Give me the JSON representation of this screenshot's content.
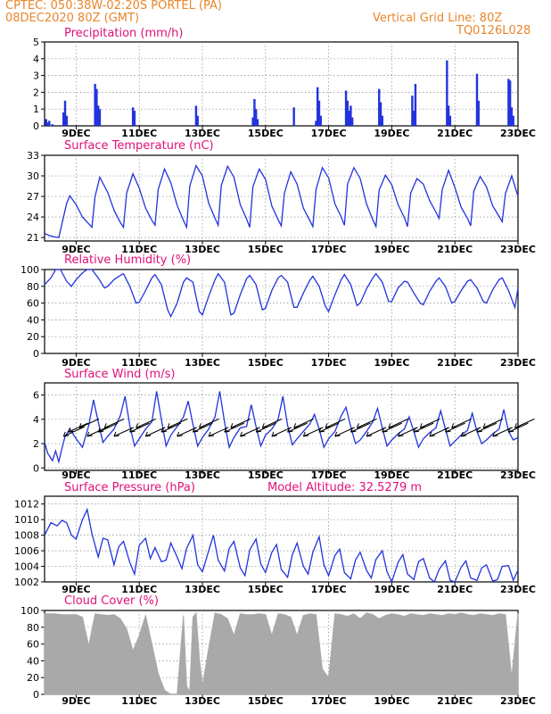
{
  "header": {
    "line1": "CPTEC:   050:38W-02:20S   PORTEL (PA)",
    "line2": "08DEC2020  80Z  (GMT)",
    "grid_note": "Vertical Grid Line: 80Z",
    "product_code": "TQ0126L028"
  },
  "colors": {
    "header": "#e8862a",
    "panel_title": "#e0107a",
    "series": "#2233dd",
    "cloud": "#a9a9a9",
    "grid": "#888888"
  },
  "x_axis": {
    "range_days": [
      8.0,
      23.0
    ],
    "tick_days": [
      9,
      11,
      13,
      15,
      17,
      19,
      21,
      23
    ],
    "tick_labels": [
      "9DEC",
      "11DEC",
      "13DEC",
      "15DEC",
      "17DEC",
      "19DEC",
      "21DEC",
      "23DEC"
    ]
  },
  "chart_data": [
    {
      "type": "bar",
      "title": "Precipitation (mm/h)",
      "ylim": [
        0,
        5
      ],
      "yticks": [
        0,
        1,
        2,
        3,
        4,
        5
      ],
      "grid": true,
      "x": [
        8.05,
        8.1,
        8.15,
        8.25,
        8.6,
        8.65,
        8.7,
        9.6,
        9.65,
        9.7,
        9.75,
        10.8,
        10.85,
        12.8,
        12.85,
        14.6,
        14.65,
        14.7,
        14.75,
        15.9,
        16.6,
        16.65,
        16.7,
        16.75,
        17.55,
        17.6,
        17.65,
        17.7,
        17.75,
        18.6,
        18.65,
        18.7,
        19.65,
        19.7,
        19.75,
        20.75,
        20.8,
        20.85,
        21.7,
        21.75,
        22.7,
        22.75,
        22.8,
        22.85
      ],
      "values": [
        0.4,
        0.2,
        0.3,
        0.1,
        0.8,
        1.5,
        0.6,
        2.5,
        2.2,
        1.2,
        1.0,
        1.1,
        0.9,
        1.2,
        0.6,
        0.5,
        1.6,
        1.0,
        0.4,
        1.1,
        0.3,
        2.3,
        1.5,
        0.6,
        2.1,
        1.5,
        0.9,
        1.2,
        0.5,
        2.2,
        1.4,
        0.6,
        1.8,
        0.9,
        2.5,
        3.9,
        1.2,
        0.6,
        3.1,
        1.5,
        2.8,
        2.7,
        1.1,
        0.6
      ]
    },
    {
      "type": "line",
      "title": "Surface Temperature (nC)",
      "ylim": [
        20.5,
        33
      ],
      "yticks": [
        21,
        24,
        27,
        30,
        33
      ],
      "grid": true,
      "x": [
        8.0,
        8.15,
        8.3,
        8.45,
        8.55,
        8.7,
        8.8,
        9.0,
        9.2,
        9.4,
        9.5,
        9.6,
        9.75,
        10.0,
        10.2,
        10.4,
        10.5,
        10.6,
        10.8,
        11.0,
        11.2,
        11.4,
        11.5,
        11.6,
        11.8,
        12.0,
        12.2,
        12.4,
        12.5,
        12.6,
        12.8,
        13.0,
        13.2,
        13.4,
        13.5,
        13.6,
        13.8,
        14.0,
        14.2,
        14.4,
        14.5,
        14.6,
        14.8,
        15.0,
        15.2,
        15.4,
        15.5,
        15.6,
        15.8,
        16.0,
        16.2,
        16.4,
        16.5,
        16.6,
        16.8,
        17.0,
        17.2,
        17.4,
        17.5,
        17.6,
        17.8,
        18.0,
        18.2,
        18.4,
        18.5,
        18.6,
        18.8,
        19.0,
        19.2,
        19.4,
        19.5,
        19.6,
        19.8,
        20.0,
        20.2,
        20.4,
        20.5,
        20.6,
        20.8,
        21.0,
        21.2,
        21.4,
        21.5,
        21.6,
        21.8,
        22.0,
        22.2,
        22.4,
        22.5,
        22.6,
        22.8,
        23.0
      ],
      "values": [
        21.6,
        21.3,
        21.1,
        21.0,
        23.0,
        26.0,
        27.1,
        25.8,
        24.0,
        23.0,
        22.5,
        27.0,
        29.8,
        27.6,
        25.0,
        23.2,
        22.5,
        27.5,
        30.3,
        28.2,
        25.3,
        23.5,
        22.8,
        28.0,
        31.0,
        29.0,
        25.7,
        23.5,
        22.5,
        28.5,
        31.5,
        30.0,
        26.0,
        23.8,
        22.8,
        28.6,
        31.4,
        29.8,
        25.8,
        23.7,
        22.5,
        28.4,
        31.0,
        29.5,
        25.6,
        23.6,
        22.7,
        27.5,
        30.6,
        28.8,
        25.3,
        23.5,
        22.6,
        28.0,
        31.2,
        29.7,
        25.9,
        24.0,
        22.8,
        28.8,
        31.2,
        29.6,
        25.9,
        23.6,
        22.6,
        27.9,
        30.1,
        28.7,
        25.8,
        23.9,
        22.6,
        27.5,
        29.6,
        28.8,
        26.4,
        24.7,
        23.8,
        28.0,
        30.8,
        28.3,
        25.4,
        23.8,
        22.7,
        27.8,
        29.9,
        28.4,
        25.6,
        24.1,
        23.3,
        27.4,
        30.0,
        27.0
      ]
    },
    {
      "type": "line",
      "title": "Relative Humidity (%)",
      "ylim": [
        0,
        100
      ],
      "yticks": [
        0,
        20,
        40,
        60,
        80,
        100
      ],
      "grid": true,
      "x": [
        8.0,
        8.2,
        8.35,
        8.5,
        8.7,
        8.85,
        9.0,
        9.2,
        9.35,
        9.5,
        9.7,
        9.9,
        10.0,
        10.2,
        10.4,
        10.5,
        10.7,
        10.9,
        11.0,
        11.2,
        11.4,
        11.5,
        11.7,
        11.9,
        12.0,
        12.2,
        12.4,
        12.5,
        12.7,
        12.9,
        13.0,
        13.2,
        13.4,
        13.5,
        13.7,
        13.9,
        14.0,
        14.2,
        14.4,
        14.5,
        14.7,
        14.9,
        15.0,
        15.2,
        15.4,
        15.5,
        15.7,
        15.9,
        16.0,
        16.2,
        16.4,
        16.5,
        16.7,
        16.9,
        17.0,
        17.2,
        17.4,
        17.5,
        17.7,
        17.9,
        18.0,
        18.2,
        18.4,
        18.5,
        18.7,
        18.9,
        19.0,
        19.2,
        19.4,
        19.5,
        19.7,
        19.9,
        20.0,
        20.2,
        20.4,
        20.5,
        20.7,
        20.9,
        21.0,
        21.2,
        21.4,
        21.5,
        21.7,
        21.9,
        22.0,
        22.2,
        22.4,
        22.5,
        22.7,
        22.9,
        23.0
      ],
      "values": [
        82,
        90,
        100,
        100,
        86,
        80,
        88,
        96,
        100,
        100,
        90,
        78,
        80,
        88,
        93,
        95,
        80,
        60,
        61,
        75,
        90,
        94,
        82,
        52,
        44,
        60,
        85,
        90,
        85,
        50,
        46,
        68,
        88,
        95,
        85,
        46,
        48,
        70,
        89,
        93,
        82,
        52,
        54,
        75,
        90,
        93,
        85,
        55,
        55,
        72,
        87,
        92,
        80,
        56,
        50,
        70,
        88,
        94,
        82,
        57,
        60,
        77,
        90,
        95,
        85,
        62,
        62,
        78,
        86,
        85,
        72,
        60,
        58,
        74,
        86,
        90,
        80,
        60,
        62,
        75,
        86,
        88,
        78,
        62,
        60,
        76,
        88,
        90,
        75,
        55,
        78
      ]
    },
    {
      "type": "line",
      "title": "Surface Wind (m/s)",
      "ylim": [
        -0.2,
        7.0
      ],
      "yticks": [
        0,
        2,
        4,
        6
      ],
      "grid": true,
      "x": [
        8.0,
        8.1,
        8.25,
        8.35,
        8.45,
        8.55,
        8.65,
        8.8,
        9.0,
        9.2,
        9.4,
        9.55,
        9.7,
        9.85,
        10.0,
        10.2,
        10.4,
        10.55,
        10.7,
        10.85,
        11.0,
        11.2,
        11.4,
        11.55,
        11.7,
        11.85,
        12.0,
        12.2,
        12.4,
        12.55,
        12.7,
        12.85,
        13.0,
        13.2,
        13.4,
        13.55,
        13.7,
        13.85,
        14.0,
        14.2,
        14.4,
        14.55,
        14.7,
        14.85,
        15.0,
        15.2,
        15.4,
        15.55,
        15.7,
        15.85,
        16.0,
        16.2,
        16.4,
        16.55,
        16.7,
        16.85,
        17.0,
        17.2,
        17.4,
        17.55,
        17.7,
        17.85,
        18.0,
        18.2,
        18.4,
        18.55,
        18.7,
        18.85,
        19.0,
        19.2,
        19.4,
        19.55,
        19.7,
        19.85,
        20.0,
        20.2,
        20.4,
        20.55,
        20.7,
        20.85,
        21.0,
        21.2,
        21.4,
        21.55,
        21.7,
        21.85,
        22.0,
        22.2,
        22.4,
        22.55,
        22.7,
        22.85,
        23.0
      ],
      "values": [
        2.1,
        1.2,
        0.6,
        1.4,
        0.5,
        1.6,
        2.6,
        3.2,
        2.4,
        1.7,
        3.5,
        5.6,
        3.8,
        2.1,
        2.6,
        3.2,
        4.3,
        5.9,
        3.5,
        1.8,
        2.4,
        3.2,
        3.8,
        6.3,
        4.0,
        1.8,
        2.7,
        3.4,
        4.2,
        5.5,
        3.6,
        1.8,
        2.5,
        3.2,
        4.2,
        6.3,
        3.8,
        1.7,
        2.5,
        3.3,
        3.4,
        5.2,
        3.4,
        1.8,
        2.7,
        3.2,
        4.0,
        5.9,
        3.5,
        1.9,
        2.4,
        3.0,
        3.6,
        4.4,
        3.2,
        1.7,
        2.4,
        3.0,
        4.3,
        5.0,
        3.4,
        2.0,
        2.3,
        3.0,
        3.8,
        4.9,
        3.3,
        1.8,
        2.3,
        2.8,
        3.2,
        4.2,
        3.0,
        1.7,
        2.4,
        2.9,
        3.3,
        4.7,
        3.2,
        1.8,
        2.2,
        2.7,
        3.1,
        4.5,
        3.0,
        2.0,
        2.3,
        2.8,
        3.2,
        4.8,
        3.0,
        2.3,
        2.5
      ],
      "wind_arrows_x": [
        8.6,
        8.75,
        9.1,
        9.35,
        9.7,
        9.9,
        10.2,
        10.7,
        10.9,
        11.2,
        11.7,
        11.9,
        12.2,
        12.7,
        12.9,
        13.2,
        13.7,
        13.9,
        14.2,
        14.7,
        14.9,
        15.2,
        15.7,
        15.9,
        16.2,
        16.7,
        16.9,
        17.2,
        17.7,
        17.9,
        18.2,
        18.7,
        18.9,
        19.2,
        19.7,
        19.9,
        20.2,
        20.7,
        20.9,
        21.2,
        21.7,
        21.9,
        22.2,
        22.7,
        22.9
      ]
    },
    {
      "type": "line",
      "title": "Surface Pressure (hPa)",
      "annotation": "Model Altitude: 32.5279 m",
      "ylim": [
        1002,
        1013
      ],
      "yticks": [
        1002,
        1004,
        1006,
        1008,
        1010,
        1012
      ],
      "grid": true,
      "x": [
        8.0,
        8.2,
        8.4,
        8.55,
        8.7,
        8.85,
        9.0,
        9.2,
        9.35,
        9.5,
        9.7,
        9.85,
        10.0,
        10.2,
        10.35,
        10.5,
        10.7,
        10.85,
        11.0,
        11.2,
        11.35,
        11.5,
        11.7,
        11.85,
        12.0,
        12.2,
        12.35,
        12.5,
        12.7,
        12.85,
        13.0,
        13.2,
        13.35,
        13.5,
        13.7,
        13.85,
        14.0,
        14.2,
        14.35,
        14.5,
        14.7,
        14.85,
        15.0,
        15.2,
        15.35,
        15.5,
        15.7,
        15.85,
        16.0,
        16.2,
        16.35,
        16.5,
        16.7,
        16.85,
        17.0,
        17.2,
        17.35,
        17.5,
        17.7,
        17.85,
        18.0,
        18.2,
        18.35,
        18.5,
        18.7,
        18.85,
        19.0,
        19.2,
        19.35,
        19.5,
        19.7,
        19.85,
        20.0,
        20.2,
        20.35,
        20.5,
        20.7,
        20.85,
        21.0,
        21.2,
        21.35,
        21.5,
        21.7,
        21.85,
        22.0,
        22.2,
        22.35,
        22.5,
        22.7,
        22.85,
        23.0
      ],
      "values": [
        1008.0,
        1009.6,
        1009.2,
        1009.9,
        1009.6,
        1008.0,
        1007.5,
        1010.0,
        1011.3,
        1008.2,
        1005.2,
        1007.6,
        1007.4,
        1004.2,
        1006.5,
        1007.2,
        1004.5,
        1003.0,
        1006.7,
        1007.6,
        1005.0,
        1006.4,
        1004.6,
        1004.8,
        1007.0,
        1005.2,
        1003.7,
        1006.3,
        1008.0,
        1004.2,
        1003.3,
        1006.0,
        1008.0,
        1004.8,
        1003.4,
        1006.3,
        1007.2,
        1003.8,
        1002.8,
        1006.1,
        1007.5,
        1004.3,
        1003.2,
        1005.8,
        1006.8,
        1003.6,
        1002.6,
        1005.5,
        1007.0,
        1004.0,
        1003.0,
        1005.8,
        1007.8,
        1004.2,
        1002.8,
        1005.4,
        1006.2,
        1003.2,
        1002.4,
        1004.8,
        1005.8,
        1003.5,
        1002.5,
        1004.9,
        1006.0,
        1003.3,
        1002.0,
        1004.5,
        1005.5,
        1003.0,
        1002.3,
        1004.6,
        1005.0,
        1002.5,
        1002.0,
        1003.6,
        1004.7,
        1002.2,
        1002.0,
        1003.9,
        1004.7,
        1002.5,
        1002.2,
        1003.8,
        1004.2,
        1002.1,
        1002.3,
        1004.0,
        1004.1,
        1002.2,
        1003.5
      ]
    },
    {
      "type": "area",
      "title": "Cloud Cover (%)",
      "ylim": [
        0,
        100
      ],
      "yticks": [
        0,
        20,
        40,
        60,
        80,
        100
      ],
      "grid": true,
      "x": [
        8.0,
        8.3,
        8.6,
        8.8,
        9.0,
        9.2,
        9.4,
        9.6,
        9.8,
        10.0,
        10.2,
        10.4,
        10.6,
        10.8,
        11.0,
        11.2,
        11.4,
        11.6,
        11.8,
        12.0,
        12.2,
        12.4,
        12.5,
        12.6,
        12.7,
        12.8,
        12.9,
        13.0,
        13.2,
        13.4,
        13.6,
        13.8,
        14.0,
        14.2,
        14.4,
        14.6,
        14.8,
        15.0,
        15.2,
        15.4,
        15.6,
        15.8,
        16.0,
        16.2,
        16.4,
        16.6,
        16.8,
        17.0,
        17.2,
        17.4,
        17.6,
        17.8,
        18.0,
        18.2,
        18.4,
        18.6,
        18.8,
        19.0,
        19.2,
        19.4,
        19.6,
        19.8,
        20.0,
        20.2,
        20.4,
        20.6,
        20.8,
        21.0,
        21.2,
        21.4,
        21.6,
        21.8,
        22.0,
        22.2,
        22.4,
        22.6,
        22.8,
        23.0
      ],
      "values": [
        96,
        96,
        95,
        95,
        95,
        92,
        58,
        96,
        95,
        94,
        95,
        90,
        78,
        52,
        70,
        94,
        60,
        25,
        5,
        0,
        0,
        94,
        10,
        3,
        92,
        97,
        45,
        10,
        55,
        97,
        95,
        90,
        70,
        96,
        95,
        95,
        96,
        95,
        70,
        96,
        95,
        92,
        70,
        94,
        96,
        95,
        30,
        20,
        96,
        95,
        93,
        96,
        90,
        97,
        95,
        90,
        94,
        96,
        95,
        93,
        96,
        95,
        94,
        96,
        95,
        94,
        96,
        95,
        97,
        95,
        94,
        96,
        95,
        94,
        96,
        95,
        20,
        97
      ]
    }
  ]
}
